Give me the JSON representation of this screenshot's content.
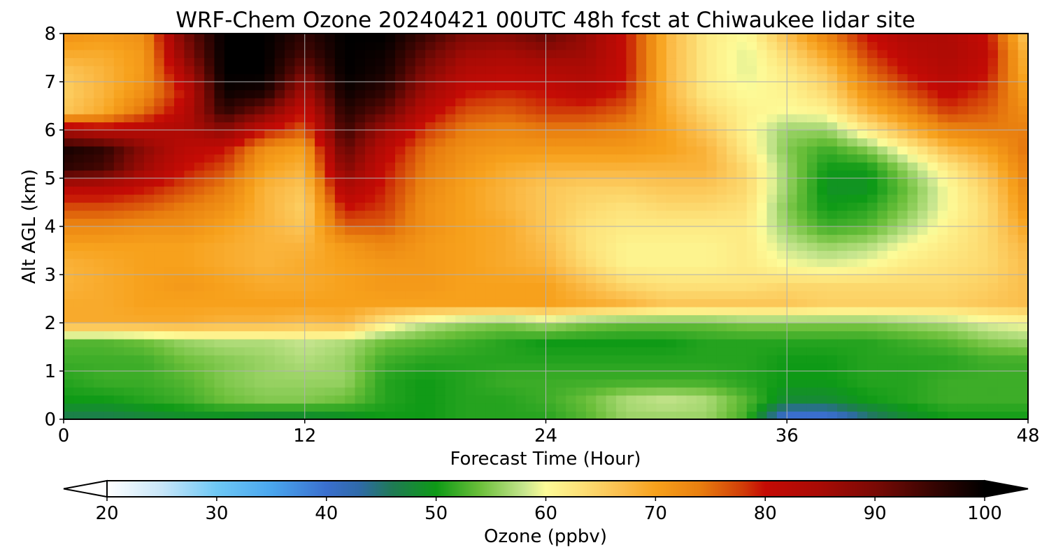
{
  "chart_data": {
    "type": "heatmap",
    "title": "WRF-Chem Ozone  20240421 00UTC 48h fcst at Chiwaukee lidar site",
    "xlabel": "Forecast Time (Hour)",
    "ylabel": "Alt AGL (km)",
    "xlim": [
      0,
      48
    ],
    "ylim": [
      0,
      8
    ],
    "x_ticks": [
      "0",
      "12",
      "24",
      "36",
      "48"
    ],
    "y_ticks": [
      "0",
      "1",
      "2",
      "3",
      "4",
      "5",
      "6",
      "7",
      "8"
    ],
    "grid": true,
    "colorbar": {
      "label": "Ozone  (ppbv)",
      "range": [
        20,
        100
      ],
      "ticks": [
        "20",
        "30",
        "40",
        "50",
        "60",
        "70",
        "80",
        "90",
        "100"
      ],
      "extend": "both",
      "stops": [
        {
          "value": 20,
          "color": "#ffffff"
        },
        {
          "value": 25,
          "color": "#c8e6f8"
        },
        {
          "value": 30,
          "color": "#6ec8f5"
        },
        {
          "value": 35,
          "color": "#4aa6ee"
        },
        {
          "value": 40,
          "color": "#3a6fce"
        },
        {
          "value": 43,
          "color": "#2f6aa8"
        },
        {
          "value": 46,
          "color": "#1f7a55"
        },
        {
          "value": 50,
          "color": "#0e9a16"
        },
        {
          "value": 54,
          "color": "#6bbf3a"
        },
        {
          "value": 58,
          "color": "#c6e58e"
        },
        {
          "value": 60,
          "color": "#fdfb98"
        },
        {
          "value": 63,
          "color": "#fde27a"
        },
        {
          "value": 67,
          "color": "#fbbd4b"
        },
        {
          "value": 70,
          "color": "#f7a11c"
        },
        {
          "value": 74,
          "color": "#e97f0f"
        },
        {
          "value": 78,
          "color": "#d13c08"
        },
        {
          "value": 80,
          "color": "#c50b05"
        },
        {
          "value": 85,
          "color": "#a80b05"
        },
        {
          "value": 90,
          "color": "#7a0a05"
        },
        {
          "value": 95,
          "color": "#3a0502"
        },
        {
          "value": 100,
          "color": "#000000"
        }
      ]
    },
    "x_hours": [
      0,
      2,
      4,
      6,
      8,
      10,
      12,
      14,
      16,
      18,
      20,
      22,
      24,
      26,
      28,
      30,
      32,
      34,
      36,
      38,
      40,
      42,
      44,
      46,
      48
    ],
    "y_km": [
      0,
      0.4,
      0.8,
      1.2,
      1.6,
      2.0,
      2.4,
      2.8,
      3.2,
      3.6,
      4.0,
      4.4,
      4.8,
      5.2,
      5.6,
      6.0,
      6.4,
      6.8,
      7.2,
      7.6,
      8.0
    ],
    "ozone_ppbv": [
      [
        46,
        46,
        47,
        48,
        48,
        47,
        47,
        48,
        50,
        50,
        51,
        51,
        51,
        53,
        56,
        56,
        56,
        52,
        38,
        38,
        44,
        48,
        50,
        50,
        50
      ],
      [
        50,
        50,
        51,
        52,
        54,
        55,
        55,
        54,
        51,
        50,
        51,
        51,
        52,
        54,
        57,
        58,
        57,
        53,
        48,
        48,
        50,
        51,
        52,
        52,
        52
      ],
      [
        51,
        52,
        52,
        53,
        55,
        56,
        56,
        56,
        51,
        50,
        51,
        52,
        52,
        52,
        52,
        52,
        52,
        51,
        50,
        50,
        51,
        51,
        52,
        52,
        52
      ],
      [
        52,
        52,
        52,
        54,
        55,
        56,
        57,
        56,
        52,
        51,
        51,
        51,
        51,
        51,
        51,
        51,
        51,
        51,
        50,
        50,
        51,
        51,
        51,
        52,
        52
      ],
      [
        53,
        53,
        54,
        56,
        57,
        57,
        58,
        57,
        54,
        53,
        52,
        51,
        50,
        50,
        50,
        50,
        51,
        51,
        51,
        51,
        51,
        52,
        53,
        55,
        56
      ],
      [
        69,
        69,
        69,
        69,
        68,
        68,
        67,
        68,
        62,
        58,
        56,
        55,
        57,
        55,
        54,
        54,
        54,
        55,
        55,
        55,
        55,
        56,
        57,
        59,
        60
      ],
      [
        69,
        69,
        70,
        70,
        70,
        70,
        70,
        70,
        70,
        70,
        70,
        70,
        70,
        69,
        68,
        66,
        66,
        66,
        66,
        65,
        65,
        65,
        65,
        66,
        67
      ],
      [
        68,
        69,
        70,
        71,
        70,
        69,
        69,
        70,
        71,
        71,
        70,
        70,
        70,
        67,
        64,
        63,
        63,
        63,
        64,
        64,
        64,
        64,
        64,
        65,
        67
      ],
      [
        68,
        69,
        70,
        70,
        69,
        68,
        69,
        70,
        71,
        71,
        70,
        69,
        68,
        64,
        61,
        61,
        61,
        62,
        60,
        59,
        60,
        62,
        63,
        64,
        67
      ],
      [
        70,
        70,
        70,
        70,
        69,
        68,
        68,
        71,
        73,
        71,
        70,
        69,
        67,
        63,
        61,
        61,
        61,
        62,
        58,
        56,
        57,
        60,
        62,
        64,
        68
      ],
      [
        73,
        73,
        72,
        72,
        70,
        68,
        66,
        76,
        76,
        72,
        70,
        69,
        66,
        63,
        62,
        62,
        62,
        62,
        56,
        52,
        53,
        57,
        61,
        64,
        70
      ],
      [
        77,
        77,
        76,
        74,
        72,
        68,
        65,
        80,
        78,
        72,
        70,
        68,
        66,
        64,
        63,
        64,
        64,
        63,
        55,
        50,
        51,
        55,
        60,
        64,
        72
      ],
      [
        82,
        82,
        80,
        77,
        74,
        68,
        66,
        84,
        79,
        73,
        70,
        68,
        66,
        65,
        65,
        66,
        66,
        64,
        56,
        49,
        49,
        54,
        60,
        65,
        73
      ],
      [
        96,
        94,
        86,
        80,
        77,
        70,
        68,
        89,
        80,
        74,
        71,
        69,
        68,
        68,
        68,
        68,
        68,
        64,
        56,
        50,
        50,
        56,
        62,
        67,
        74
      ],
      [
        98,
        96,
        88,
        82,
        80,
        72,
        70,
        92,
        82,
        75,
        72,
        71,
        71,
        71,
        71,
        70,
        68,
        62,
        55,
        52,
        55,
        61,
        67,
        70,
        75
      ],
      [
        84,
        82,
        83,
        84,
        88,
        80,
        76,
        95,
        86,
        78,
        74,
        73,
        74,
        74,
        73,
        70,
        66,
        61,
        56,
        56,
        62,
        68,
        73,
        74,
        74
      ],
      [
        66,
        69,
        75,
        82,
        96,
        90,
        80,
        97,
        92,
        82,
        77,
        76,
        78,
        78,
        76,
        69,
        64,
        61,
        60,
        61,
        68,
        73,
        78,
        76,
        72
      ],
      [
        65,
        68,
        72,
        80,
        99,
        98,
        85,
        99,
        96,
        86,
        80,
        79,
        80,
        82,
        79,
        68,
        62,
        60,
        61,
        64,
        72,
        77,
        81,
        78,
        70
      ],
      [
        66,
        68,
        71,
        84,
        100,
        100,
        90,
        100,
        98,
        89,
        83,
        82,
        83,
        84,
        80,
        68,
        62,
        59,
        62,
        66,
        75,
        80,
        83,
        80,
        68
      ],
      [
        69,
        69,
        71,
        88,
        100,
        100,
        94,
        100,
        99,
        92,
        86,
        85,
        87,
        86,
        80,
        68,
        62,
        59,
        64,
        70,
        78,
        82,
        84,
        81,
        67
      ],
      [
        72,
        71,
        72,
        90,
        100,
        100,
        96,
        100,
        100,
        95,
        90,
        89,
        92,
        87,
        80,
        68,
        62,
        60,
        67,
        74,
        80,
        84,
        84,
        80,
        65
      ]
    ]
  }
}
